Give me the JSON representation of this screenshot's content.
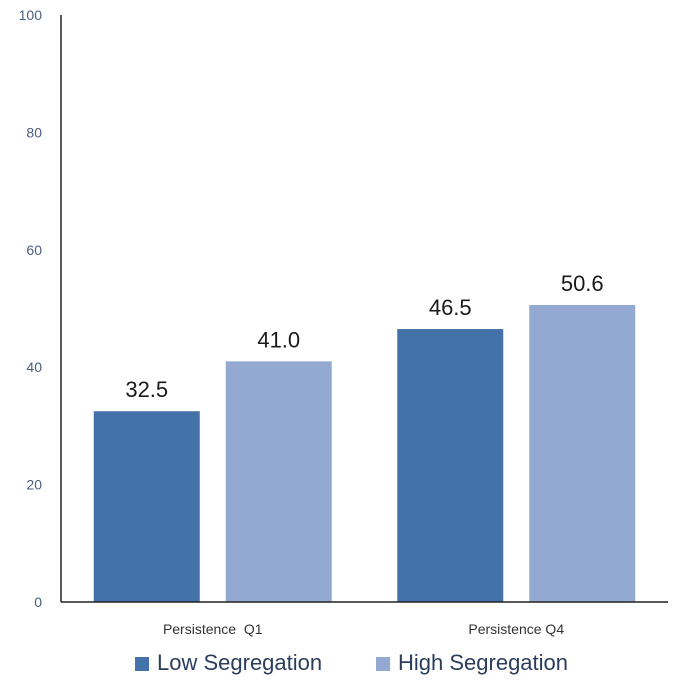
{
  "chart_data": {
    "type": "bar",
    "title": "",
    "xlabel": "",
    "ylabel": "",
    "ylim": [
      0,
      100
    ],
    "yticks": [
      0,
      20,
      40,
      60,
      80,
      100
    ],
    "categories": [
      "Persistence  Q1",
      "Persistence Q4"
    ],
    "series": [
      {
        "name": "Low Segregation",
        "values": [
          32.5,
          46.5
        ],
        "labels": [
          "32.5",
          "46.5"
        ],
        "color": "#4472a8"
      },
      {
        "name": "High Segregation",
        "values": [
          41.0,
          50.6
        ],
        "labels": [
          "41.0",
          "50.6"
        ],
        "color": "#94a9d1"
      }
    ],
    "grid": false,
    "legend_position": "bottom"
  }
}
